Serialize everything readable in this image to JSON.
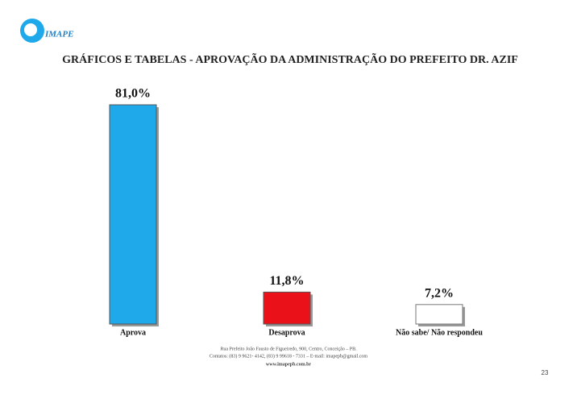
{
  "logo": "IMAPE",
  "chart_data": {
    "type": "bar",
    "title": "GRÁFICOS E TABELAS - APROVAÇÃO DA ADMINISTRAÇÃO DO PREFEITO DR. AZIF",
    "categories": [
      "Aprova",
      "Desaprova",
      "Não sabe/ Não respondeu"
    ],
    "values": [
      81.0,
      11.8,
      7.2
    ],
    "value_labels": [
      "81,0%",
      "11,8%",
      "7,2%"
    ],
    "colors": [
      "#1fa9ea",
      "#ea1218",
      "#ffffff"
    ]
  },
  "footer": [
    "Rua Prefeito João Fausto de Figueiredo, 900, Centro, Conceição – PB.",
    "Contatos: (83) 9 9621- 4142, (83) 9 99618 - 7331 – E-mail: imapepb@gmail.com",
    "www.imapepb.com.br"
  ],
  "page_number": "23"
}
